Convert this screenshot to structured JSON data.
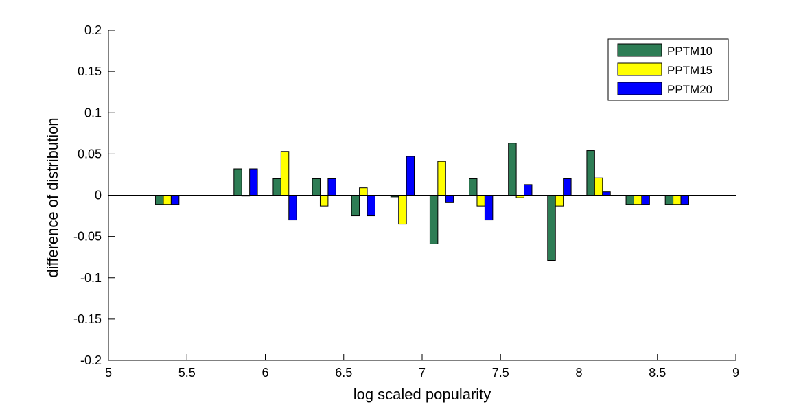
{
  "chart_data": {
    "type": "bar",
    "title": "",
    "xlabel": "log scaled popularity",
    "ylabel": "difference of distribution",
    "xlim": [
      5,
      9
    ],
    "ylim": [
      -0.2,
      0.2
    ],
    "x_ticks": [
      5,
      5.5,
      6,
      6.5,
      7,
      7.5,
      8,
      8.5,
      9
    ],
    "x_tick_labels": [
      "5",
      "5.5",
      "6",
      "6.5",
      "7",
      "7.5",
      "8",
      "8.5",
      "9"
    ],
    "y_ticks": [
      -0.2,
      -0.15,
      -0.1,
      -0.05,
      0,
      0.05,
      0.1,
      0.15,
      0.2
    ],
    "y_tick_labels": [
      "-0.2",
      "-0.15",
      "-0.1",
      "-0.05",
      "0",
      "0.05",
      "0.1",
      "0.15",
      "0.2"
    ],
    "grid": false,
    "legend_position": "top-right",
    "bar_width": 0.05,
    "x": [
      5.375,
      5.875,
      6.125,
      6.375,
      6.625,
      6.875,
      7.125,
      7.375,
      7.625,
      7.875,
      8.125,
      8.375,
      8.625
    ],
    "series": [
      {
        "name": "PPTM10",
        "color": "#2e7d55",
        "offset": -0.05,
        "values": [
          -0.011,
          0.032,
          0.02,
          0.02,
          -0.025,
          -0.002,
          -0.059,
          0.02,
          0.063,
          -0.079,
          0.054,
          -0.011,
          -0.011
        ]
      },
      {
        "name": "PPTM15",
        "color": "#ffff00",
        "offset": 0,
        "values": [
          -0.011,
          -0.001,
          0.053,
          -0.013,
          0.009,
          -0.035,
          0.041,
          -0.013,
          -0.003,
          -0.013,
          0.021,
          -0.011,
          -0.011
        ]
      },
      {
        "name": "PPTM20",
        "color": "#0000ff",
        "offset": 0.05,
        "values": [
          -0.011,
          0.032,
          -0.03,
          0.02,
          -0.025,
          0.047,
          -0.009,
          -0.03,
          0.013,
          0.02,
          0.004,
          -0.011,
          -0.011
        ]
      }
    ]
  }
}
